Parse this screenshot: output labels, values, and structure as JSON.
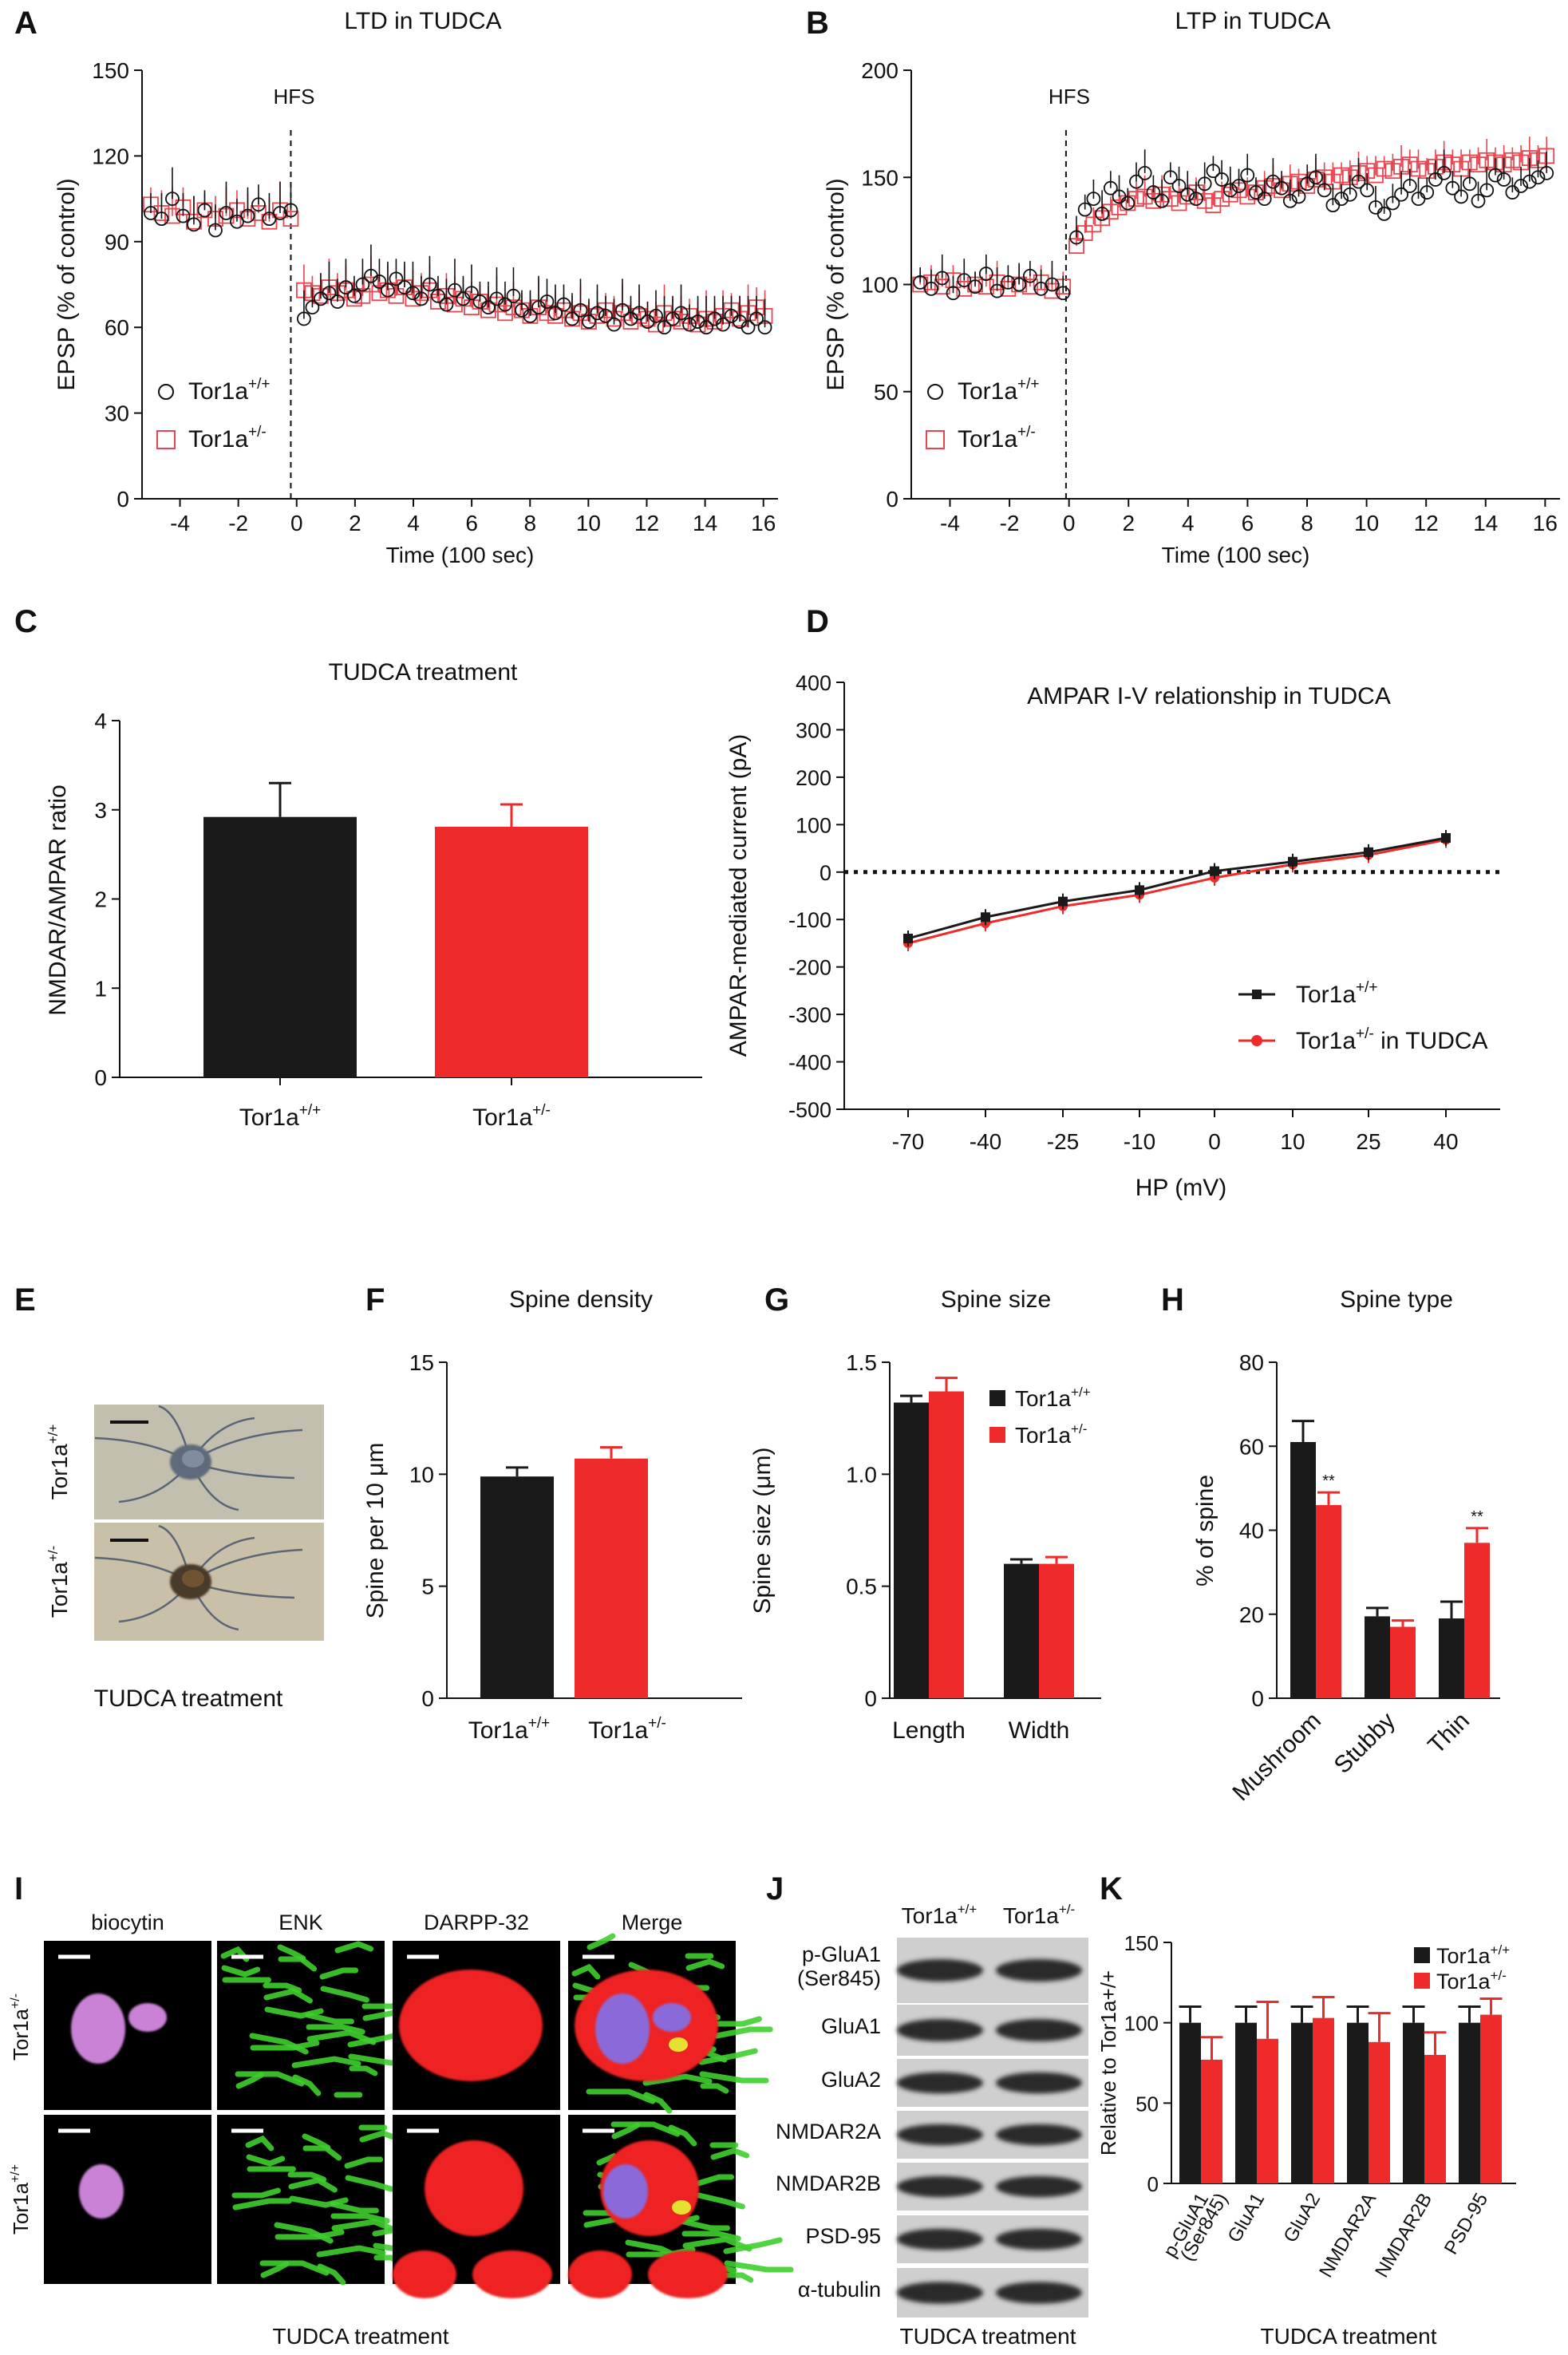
{
  "figure": {
    "panel_letters": [
      "A",
      "B",
      "C",
      "D",
      "E",
      "F",
      "G",
      "H",
      "I",
      "J",
      "K"
    ],
    "colors": {
      "wt": "#1a1a1a",
      "het": "#ee2a2a",
      "het_marker": "#e8454f"
    }
  },
  "chart_data": [
    {
      "id": "A",
      "type": "scatter",
      "title": "LTD in TUDCA",
      "xlabel": "Time (100 sec)",
      "ylabel": "EPSP (% of control)",
      "xlim": [
        -5.3,
        16.5
      ],
      "ylim": [
        0,
        150
      ],
      "xticks": [
        "-4",
        "-2",
        "0",
        "2",
        "4",
        "6",
        "8",
        "10",
        "12",
        "14",
        "16"
      ],
      "yticks": [
        "0",
        "30",
        "60",
        "90",
        "120",
        "150"
      ],
      "annotation": "HFS",
      "hfs_x": -0.2,
      "legend": [
        {
          "base": "Tor1a",
          "sup": "+/+"
        },
        {
          "base": "Tor1a",
          "sup": "+/-"
        }
      ],
      "series": [
        {
          "baseline": [
            100,
            98,
            105,
            99,
            96,
            101,
            94,
            100,
            97,
            99,
            103,
            98,
            100,
            101
          ],
          "post": [
            63,
            67,
            70,
            72,
            69,
            74,
            71,
            75,
            78,
            76,
            73,
            77,
            74,
            72,
            70,
            75,
            71,
            68,
            73,
            70,
            72,
            69,
            67,
            70,
            68,
            71,
            66,
            64,
            67,
            69,
            65,
            68,
            63,
            66,
            62,
            65,
            64,
            61,
            66,
            63,
            65,
            62,
            64,
            60,
            63,
            65,
            61,
            62,
            60,
            63,
            61,
            64,
            62,
            60,
            63,
            60
          ]
        },
        {
          "baseline": [
            103,
            100,
            99,
            102,
            97,
            101,
            98,
            99,
            101,
            98,
            100,
            97,
            101,
            98
          ],
          "post": [
            73,
            72,
            71,
            74,
            72,
            73,
            70,
            71,
            75,
            72,
            73,
            71,
            74,
            70,
            72,
            73,
            69,
            71,
            68,
            70,
            67,
            69,
            66,
            68,
            65,
            67,
            66,
            64,
            67,
            65,
            64,
            66,
            63,
            65,
            62,
            64,
            66,
            63,
            65,
            62,
            64,
            63,
            61,
            65,
            63,
            62,
            64,
            61,
            63,
            62,
            64,
            66,
            63,
            65,
            67,
            64
          ]
        }
      ]
    },
    {
      "id": "B",
      "type": "scatter",
      "title": "LTP in TUDCA",
      "xlabel": "Time (100 sec)",
      "ylabel": "EPSP (% of control)",
      "xlim": [
        -5.3,
        16.5
      ],
      "ylim": [
        0,
        200
      ],
      "xticks": [
        "-4",
        "-2",
        "0",
        "2",
        "4",
        "6",
        "8",
        "10",
        "12",
        "14",
        "16"
      ],
      "yticks": [
        "0",
        "50",
        "100",
        "150",
        "200"
      ],
      "annotation": "HFS",
      "hfs_x": -0.1,
      "legend": [
        {
          "base": "Tor1a",
          "sup": "+/+"
        },
        {
          "base": "Tor1a",
          "sup": "+/-"
        }
      ],
      "series": [
        {
          "baseline": [
            101,
            98,
            103,
            96,
            102,
            99,
            105,
            97,
            101,
            100,
            104,
            98,
            100,
            96
          ],
          "post": [
            122,
            135,
            140,
            133,
            145,
            141,
            138,
            148,
            152,
            143,
            139,
            150,
            146,
            142,
            140,
            147,
            153,
            149,
            144,
            146,
            151,
            143,
            140,
            148,
            145,
            139,
            141,
            147,
            150,
            144,
            137,
            140,
            142,
            148,
            144,
            136,
            133,
            138,
            142,
            146,
            140,
            143,
            149,
            152,
            145,
            141,
            147,
            139,
            144,
            151,
            149,
            143,
            146,
            148,
            150,
            152
          ]
        },
        {
          "baseline": [
            100,
            101,
            99,
            102,
            98,
            100,
            99,
            101,
            98,
            100,
            99,
            101,
            97,
            99
          ],
          "post": [
            118,
            124,
            128,
            131,
            134,
            136,
            138,
            140,
            141,
            139,
            142,
            140,
            138,
            141,
            143,
            139,
            137,
            140,
            142,
            144,
            141,
            143,
            145,
            146,
            144,
            147,
            148,
            146,
            149,
            150,
            148,
            151,
            150,
            152,
            153,
            151,
            154,
            153,
            155,
            156,
            154,
            153,
            155,
            157,
            156,
            154,
            157,
            156,
            158,
            157,
            156,
            158,
            157,
            159,
            158,
            160
          ]
        }
      ]
    },
    {
      "id": "C",
      "type": "bar",
      "title": "TUDCA treatment",
      "ylabel": "NMDAR/AMPAR ratio",
      "ylim": [
        0,
        4
      ],
      "yticks": [
        "0",
        "1",
        "2",
        "3",
        "4"
      ],
      "categories": [
        {
          "base": "Tor1a",
          "sup": "+/+"
        },
        {
          "base": "Tor1a",
          "sup": "+/-"
        }
      ],
      "values": [
        2.92,
        2.81
      ],
      "errors": [
        0.38,
        0.25
      ]
    },
    {
      "id": "D",
      "type": "line",
      "title": "AMPAR I-V relationship in TUDCA",
      "xlabel": "HP (mV)",
      "ylabel": "AMPAR-mediated current (pA)",
      "ylim": [
        -500,
        400
      ],
      "yticks": [
        "400",
        "300",
        "200",
        "100",
        "0",
        "-100",
        "-200",
        "-300",
        "-400",
        "-500"
      ],
      "x": [
        "-70",
        "-40",
        "-25",
        "-10",
        "0",
        "10",
        "25",
        "40"
      ],
      "legend": [
        {
          "base": "Tor1a",
          "sup": "+/+",
          "tail": ""
        },
        {
          "base": "Tor1a",
          "sup": "+/-",
          "tail": " in TUDCA"
        }
      ],
      "series": [
        {
          "values": [
            -140,
            -95,
            -62,
            -38,
            2,
            22,
            42,
            72
          ]
        },
        {
          "values": [
            -150,
            -108,
            -72,
            -48,
            -12,
            16,
            36,
            68
          ]
        }
      ]
    },
    {
      "id": "F",
      "type": "bar",
      "title": "Spine density",
      "ylabel": "Spine per 10 μm",
      "ylim": [
        0,
        15
      ],
      "yticks": [
        "0",
        "5",
        "10",
        "15"
      ],
      "categories": [
        {
          "base": "Tor1a",
          "sup": "+/+"
        },
        {
          "base": "Tor1a",
          "sup": "+/-"
        }
      ],
      "values": [
        9.9,
        10.7
      ],
      "errors": [
        0.4,
        0.5
      ]
    },
    {
      "id": "G",
      "type": "bar",
      "title": "Spine size",
      "ylabel": "Spine siez (μm)",
      "ylim": [
        0,
        1.5
      ],
      "yticks": [
        "0",
        "0.5",
        "1.0",
        "1.5"
      ],
      "categories": [
        "Length",
        "Width"
      ],
      "legend": [
        {
          "base": "Tor1a",
          "sup": "+/+"
        },
        {
          "base": "Tor1a",
          "sup": "+/-"
        }
      ],
      "series": [
        {
          "values": [
            1.32,
            0.6
          ],
          "errors": [
            0.03,
            0.02
          ]
        },
        {
          "values": [
            1.37,
            0.6
          ],
          "errors": [
            0.06,
            0.03
          ]
        }
      ]
    },
    {
      "id": "H",
      "type": "bar",
      "title": "Spine type",
      "ylabel": "% of spine",
      "ylim": [
        0,
        80
      ],
      "yticks": [
        "0",
        "20",
        "40",
        "60",
        "80"
      ],
      "categories": [
        "Mushroom",
        "Stubby",
        "Thin"
      ],
      "series": [
        {
          "values": [
            61,
            19.5,
            19
          ],
          "errors": [
            5,
            2,
            4
          ]
        },
        {
          "values": [
            46,
            17,
            37
          ],
          "errors": [
            3,
            1.5,
            3.5
          ]
        }
      ],
      "annotations": [
        "**",
        "",
        "**"
      ]
    },
    {
      "id": "K",
      "type": "bar",
      "title": "",
      "ylabel": "Relative to Tor1a+/+",
      "ylim": [
        0,
        150
      ],
      "yticks": [
        "0",
        "50",
        "100",
        "150"
      ],
      "categories": [
        "p-GluA1 (Ser845)",
        "GluA1",
        "GluA2",
        "NMDAR2A",
        "NMDAR2B",
        "PSD-95"
      ],
      "category_labels": [
        "p-GluA1",
        "(Ser845)",
        "GluA1",
        "GluA2",
        "NMDAR2A",
        "NMDAR2B",
        "PSD-95"
      ],
      "legend": [
        {
          "base": "Tor1a",
          "sup": "+/+"
        },
        {
          "base": "Tor1a",
          "sup": "+/-"
        }
      ],
      "series": [
        {
          "values": [
            100,
            100,
            100,
            100,
            100,
            100
          ],
          "errors": [
            10,
            10,
            10,
            10,
            10,
            10
          ]
        },
        {
          "values": [
            77,
            90,
            103,
            88,
            80,
            105
          ],
          "errors": [
            14,
            23,
            13,
            18,
            14,
            10
          ]
        }
      ],
      "caption": "TUDCA treatment"
    }
  ],
  "panelE": {
    "rows": [
      {
        "base": "Tor1a",
        "sup": "+/+"
      },
      {
        "base": "Tor1a",
        "sup": "+/-"
      }
    ],
    "caption": "TUDCA treatment"
  },
  "panelI": {
    "columns": [
      "biocytin",
      "ENK",
      "DARPP-32",
      "Merge"
    ],
    "rows": [
      {
        "base": "Tor1a",
        "sup": "+/-"
      },
      {
        "base": "Tor1a",
        "sup": "+/+"
      }
    ],
    "caption": "TUDCA treatment"
  },
  "panelJ": {
    "header": [
      {
        "base": "Tor1a",
        "sup": "+/+"
      },
      {
        "base": "Tor1a",
        "sup": "+/-"
      }
    ],
    "rows": [
      "p-GluA1",
      "(Ser845)",
      "GluA1",
      "GluA2",
      "NMDAR2A",
      "NMDAR2B",
      "PSD-95",
      "α-tubulin"
    ],
    "caption": "TUDCA treatment"
  }
}
